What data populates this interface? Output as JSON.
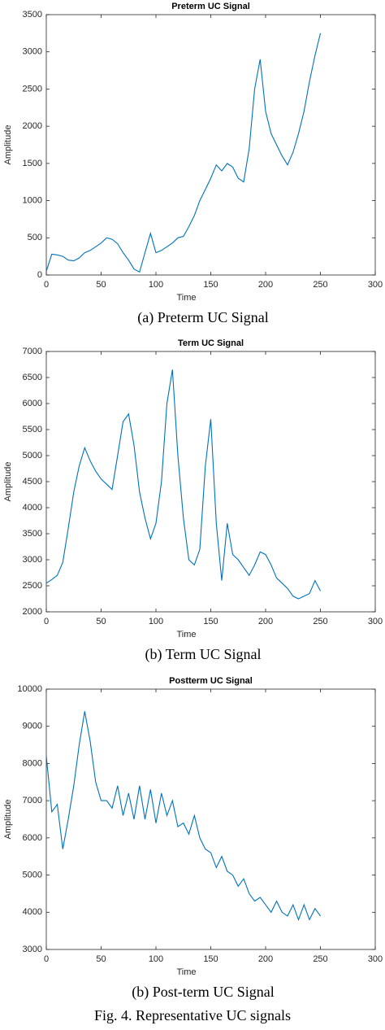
{
  "chart_data": [
    {
      "type": "line",
      "title": "Preterm UC Signal",
      "xlabel": "Time",
      "ylabel": "Amplitude",
      "caption": "(a) Preterm UC Signal",
      "color": "#0072bd",
      "xlim": [
        0,
        300
      ],
      "xticks": [
        0,
        50,
        100,
        150,
        200,
        250,
        300
      ],
      "ylim": [
        0,
        3500
      ],
      "yticks": [
        0,
        500,
        1000,
        1500,
        2000,
        2500,
        3000,
        3500
      ],
      "x": [
        0,
        5,
        10,
        15,
        20,
        25,
        30,
        35,
        40,
        45,
        50,
        55,
        60,
        65,
        70,
        75,
        80,
        85,
        90,
        95,
        100,
        105,
        110,
        115,
        120,
        125,
        130,
        135,
        140,
        145,
        150,
        155,
        160,
        165,
        170,
        175,
        180,
        185,
        190,
        195,
        200,
        205,
        210,
        215,
        220,
        225,
        230,
        235,
        240,
        245,
        250
      ],
      "values": [
        50,
        280,
        270,
        250,
        200,
        190,
        230,
        300,
        330,
        380,
        430,
        500,
        480,
        420,
        300,
        200,
        80,
        40,
        300,
        560,
        300,
        330,
        380,
        430,
        500,
        520,
        650,
        800,
        1000,
        1150,
        1300,
        1480,
        1400,
        1500,
        1450,
        1300,
        1250,
        1700,
        2500,
        2900,
        2200,
        1900,
        1750,
        1600,
        1480,
        1650,
        1900,
        2200,
        2600,
        2950,
        3250
      ]
    },
    {
      "type": "line",
      "title": "Term UC Signal",
      "xlabel": "Time",
      "ylabel": "Amplitude",
      "caption": "(b) Term UC Signal",
      "color": "#0072bd",
      "xlim": [
        0,
        300
      ],
      "xticks": [
        0,
        50,
        100,
        150,
        200,
        250,
        300
      ],
      "ylim": [
        2000,
        7000
      ],
      "yticks": [
        2000,
        2500,
        3000,
        3500,
        4000,
        4500,
        5000,
        5500,
        6000,
        6500,
        7000
      ],
      "x": [
        0,
        5,
        10,
        15,
        20,
        25,
        30,
        35,
        40,
        45,
        50,
        55,
        60,
        65,
        70,
        75,
        80,
        85,
        90,
        95,
        100,
        105,
        110,
        115,
        120,
        125,
        130,
        135,
        140,
        145,
        150,
        155,
        160,
        165,
        170,
        175,
        180,
        185,
        190,
        195,
        200,
        205,
        210,
        215,
        220,
        225,
        230,
        235,
        240,
        245,
        250
      ],
      "values": [
        2550,
        2620,
        2700,
        2950,
        3600,
        4300,
        4800,
        5150,
        4900,
        4700,
        4550,
        4450,
        4350,
        5000,
        5650,
        5800,
        5200,
        4300,
        3800,
        3400,
        3700,
        4500,
        6000,
        6650,
        5000,
        3800,
        3000,
        2900,
        3200,
        4800,
        5700,
        3700,
        2600,
        3700,
        3100,
        3000,
        2850,
        2700,
        2900,
        3150,
        3100,
        2900,
        2650,
        2550,
        2450,
        2300,
        2250,
        2300,
        2350,
        2600,
        2400
      ]
    },
    {
      "type": "line",
      "title": "Postterm UC Signal",
      "xlabel": "Time",
      "ylabel": "Amplitude",
      "caption": "(b) Post-term UC Signal",
      "color": "#0072bd",
      "xlim": [
        0,
        300
      ],
      "xticks": [
        0,
        50,
        100,
        150,
        200,
        250,
        300
      ],
      "ylim": [
        3000,
        10000
      ],
      "yticks": [
        3000,
        4000,
        5000,
        6000,
        7000,
        8000,
        9000,
        10000
      ],
      "x": [
        0,
        5,
        10,
        15,
        20,
        25,
        30,
        35,
        40,
        45,
        50,
        55,
        60,
        65,
        70,
        75,
        80,
        85,
        90,
        95,
        100,
        105,
        110,
        115,
        120,
        125,
        130,
        135,
        140,
        145,
        150,
        155,
        160,
        165,
        170,
        175,
        180,
        185,
        190,
        195,
        200,
        205,
        210,
        215,
        220,
        225,
        230,
        235,
        240,
        245,
        250
      ],
      "values": [
        8200,
        6700,
        6900,
        5700,
        6500,
        7400,
        8500,
        9400,
        8600,
        7500,
        7000,
        7000,
        6800,
        7400,
        6600,
        7200,
        6500,
        7400,
        6500,
        7300,
        6400,
        7200,
        6600,
        7000,
        6300,
        6400,
        6100,
        6600,
        6000,
        5700,
        5600,
        5200,
        5500,
        5100,
        5000,
        4700,
        4900,
        4500,
        4300,
        4400,
        4200,
        4000,
        4300,
        4000,
        3900,
        4200,
        3800,
        4200,
        3800,
        4100,
        3900
      ]
    }
  ],
  "figure_caption": "Fig. 4. Representative UC signals"
}
